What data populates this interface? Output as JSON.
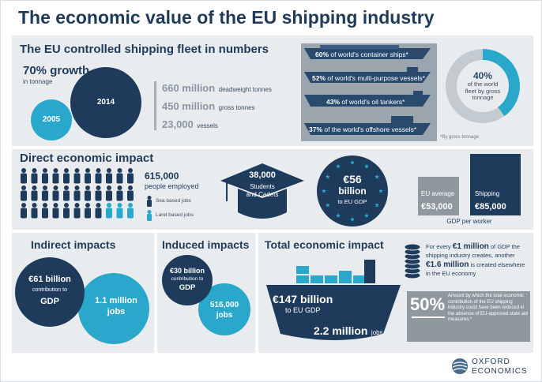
{
  "title": "The economic value of the EU shipping industry",
  "fleet": {
    "heading": "The EU controlled shipping fleet in numbers",
    "growth": "70% growth",
    "growth_sub": "in tonnage",
    "year_2005": "2005",
    "year_2014": "2014",
    "stats": [
      {
        "value": "660 million",
        "unit": "deadweight tonnes"
      },
      {
        "value": "450 million",
        "unit": "gross tonnes"
      },
      {
        "value": "23,000",
        "unit": "vessels"
      }
    ],
    "ships": [
      {
        "pct": "60%",
        "text": "of world's container ships*"
      },
      {
        "pct": "52%",
        "text": "of world's multi-purpose vessels*"
      },
      {
        "pct": "43%",
        "text": "of world's oil tankers*"
      },
      {
        "pct": "37%",
        "text": "of the world's offshore vessels*"
      }
    ],
    "donut": {
      "pct": "40%",
      "line1": "of the world",
      "line2": "fleet by gross",
      "line3": "tonnage",
      "fraction": 0.4
    },
    "footnote": "*By gross tonnage"
  },
  "direct": {
    "heading": "Direct economic impact",
    "employed_value": "615,000",
    "employed_label": "people employed",
    "legend_sea": "Sea based jobs",
    "legend_land": "Land based jobs",
    "students_value": "38,000",
    "students_label1": "Students",
    "students_label2": "and Cadets",
    "gdp_value": "€56",
    "gdp_unit": "billion",
    "gdp_label": "to EU GDP",
    "bar_eu_label": "EU average",
    "bar_eu_value": "€53,000",
    "bar_ship_label": "Shipping",
    "bar_ship_value": "€85,000",
    "bar_caption": "GDP per worker",
    "bar_chart": {
      "eu_average": 53000,
      "shipping": 85000
    }
  },
  "indirect": {
    "heading": "Indirect impacts",
    "gdp_value": "€61 billion",
    "gdp_mid": "contribution to",
    "gdp_label": "GDP",
    "jobs_value": "1.1 million",
    "jobs_label": "jobs"
  },
  "induced": {
    "heading": "Induced impacts",
    "gdp_value": "€30 billion",
    "gdp_mid": "contribution to",
    "gdp_label": "GDP",
    "jobs_value": "516,000",
    "jobs_label": "jobs"
  },
  "total": {
    "heading": "Total economic impact",
    "gdp_value": "€147 billion",
    "gdp_label": "to EU GDP",
    "jobs_value": "2.2 million",
    "jobs_label": "jobs",
    "multiplier_pre": "For every",
    "multiplier_value": "€1 million",
    "multiplier_mid": "of GDP the shipping industry creates, another",
    "multiplier_value2": "€1.6 million",
    "multiplier_post": "is created elsewhere in the EU economy",
    "aid_value": "50%",
    "aid_text": "Amount by which the total economic contribution of the EU shipping industry could have been reduced in the absence of EU-approved state aid measures.*"
  },
  "brand": {
    "line1": "OXFORD",
    "line2": "ECONOMICS"
  },
  "colors": {
    "navy": "#1f3b5c",
    "cyan": "#2aa8cc",
    "panel": "#e9ecee",
    "ship": "#2a4a6d",
    "grey_box": "#8e989f"
  }
}
